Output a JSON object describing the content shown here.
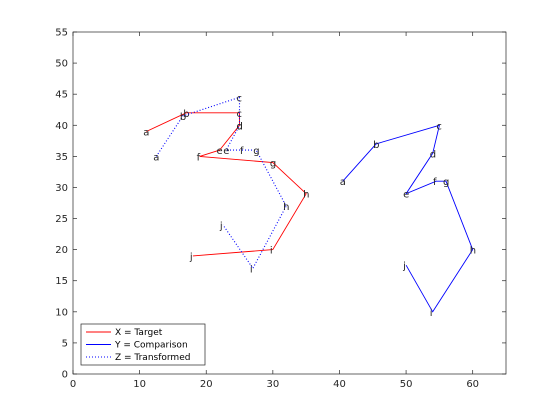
{
  "chart_data": {
    "type": "line",
    "title": "",
    "xlabel": "",
    "ylabel": "",
    "xlim": [
      0,
      65
    ],
    "ylim": [
      0,
      55
    ],
    "xticks": [
      0,
      10,
      20,
      30,
      40,
      50,
      60
    ],
    "yticks": [
      0,
      5,
      10,
      15,
      20,
      25,
      30,
      35,
      40,
      45,
      50,
      55
    ],
    "grid": false,
    "legend_position": "bottom-left",
    "series": [
      {
        "name": "X = Target",
        "color": "#ff0000",
        "style": "solid",
        "labels": [
          "a",
          "b",
          "c",
          "d",
          "e",
          "f",
          "g",
          "h",
          "i",
          "j"
        ],
        "x": [
          11,
          17,
          25,
          25,
          22,
          19,
          30,
          35,
          30,
          18
        ],
        "y": [
          39,
          42,
          42,
          40,
          36,
          35,
          34,
          29,
          20,
          19
        ]
      },
      {
        "name": "Y = Comparison",
        "color": "#0000ff",
        "style": "solid",
        "labels": [
          "a",
          "b",
          "c",
          "d",
          "e",
          "f",
          "g",
          "h",
          "i",
          "j"
        ],
        "x": [
          40.5,
          45.5,
          55,
          54,
          50,
          54.5,
          56,
          60,
          54,
          50
        ],
        "y": [
          31,
          37,
          40,
          35.5,
          29,
          31,
          31,
          20,
          10,
          17.5
        ]
      },
      {
        "name": "Z = Transformed",
        "color": "#0000ff",
        "style": "dotted",
        "labels": [
          "a",
          "b",
          "c",
          "d",
          "e",
          "f",
          "g",
          "h",
          "i",
          "j"
        ],
        "x": [
          12.5,
          16.5,
          25,
          25,
          23,
          25.5,
          27.5,
          32,
          27,
          22.5
        ],
        "y": [
          35,
          41.5,
          44.5,
          40,
          36,
          36,
          36,
          27,
          17,
          24
        ]
      }
    ]
  }
}
